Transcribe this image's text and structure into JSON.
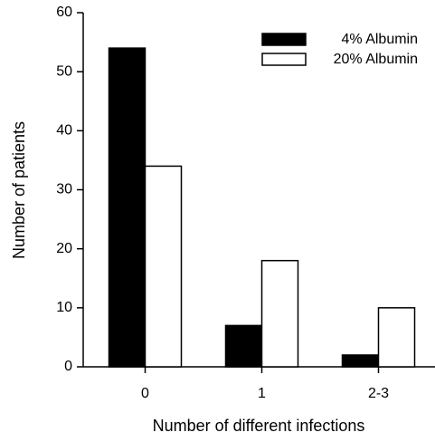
{
  "chart_data": {
    "type": "bar",
    "xlabel": "Number of different infections",
    "ylabel": "Number of patients",
    "categories": [
      "0",
      "1",
      "2-3"
    ],
    "series": [
      {
        "name": "4% Albumin",
        "color": "#000000",
        "values": [
          54,
          7,
          2
        ]
      },
      {
        "name": "20% Albumin",
        "color": "#ffffff",
        "values": [
          34,
          18,
          10
        ]
      }
    ],
    "ylim": [
      0,
      60
    ],
    "yticks": [
      0,
      10,
      20,
      30,
      40,
      50,
      60
    ],
    "legend": "upper right"
  }
}
